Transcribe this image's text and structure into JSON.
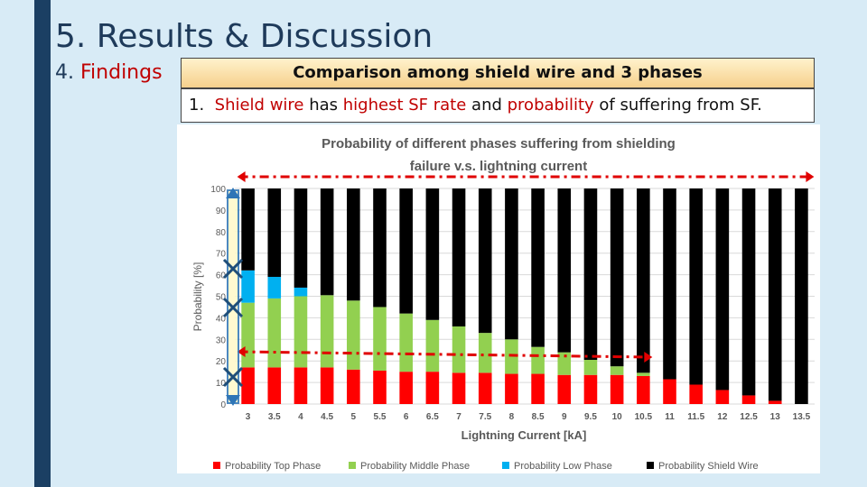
{
  "slide": {
    "title": "5. Results & Discussion",
    "section_number": "4.",
    "section_label": "Findings",
    "box_heading": "Comparison among shield wire and 3 phases",
    "finding_number": "1.",
    "finding_parts": [
      "Shield wire",
      " has ",
      "highest SF rate",
      " and ",
      "probability",
      " of suffering from SF."
    ],
    "accent_color": "#c00000",
    "sidebar_color": "#1b3f63"
  },
  "chart_data": {
    "type": "bar",
    "stacked": true,
    "title": "Probability of different phases suffering from shielding failure v.s. lightning current",
    "title_lines": [
      "Probability of different phases suffering from shielding",
      "failure v.s. lightning current"
    ],
    "xlabel": "Lightning Current [kA]",
    "ylabel": "Probability [%]",
    "ylim": [
      0,
      100
    ],
    "yticks": [
      0,
      10,
      20,
      30,
      40,
      50,
      60,
      70,
      80,
      90,
      100
    ],
    "grid": true,
    "legend_position": "bottom",
    "categories": [
      "3",
      "3.5",
      "4",
      "4.5",
      "5",
      "5.5",
      "6",
      "6.5",
      "7",
      "7.5",
      "8",
      "8.5",
      "9",
      "9.5",
      "10",
      "10.5",
      "11",
      "11.5",
      "12",
      "12.5",
      "13",
      "13.5"
    ],
    "series": [
      {
        "name": "Probability Top Phase",
        "color": "#ff0000",
        "values": [
          17,
          17,
          17,
          17,
          16,
          15.5,
          15,
          15,
          14.5,
          14.5,
          14,
          14,
          13.5,
          13.5,
          13.5,
          13,
          11.5,
          9,
          6.5,
          4,
          1.5,
          0
        ]
      },
      {
        "name": "Probability Middle Phase",
        "color": "#92d050",
        "values": [
          30,
          32,
          33,
          33.5,
          32,
          29.5,
          27,
          24,
          21.5,
          18.5,
          16,
          12.5,
          10.5,
          7,
          4,
          1.5,
          0,
          0,
          0,
          0,
          0,
          0
        ]
      },
      {
        "name": "Probability Low Phase",
        "color": "#00b0f0",
        "values": [
          15,
          10,
          4,
          0,
          0,
          0,
          0,
          0,
          0,
          0,
          0,
          0,
          0,
          0,
          0,
          0,
          0,
          0,
          0,
          0,
          0,
          0
        ]
      },
      {
        "name": "Probability Shield Wire",
        "color": "#000000",
        "values": [
          38,
          41,
          46,
          49.5,
          52,
          55,
          58,
          61,
          64,
          67,
          70,
          73.5,
          76,
          79.5,
          82.5,
          85.5,
          88.5,
          91,
          93.5,
          96,
          98.5,
          100
        ]
      }
    ],
    "annotation_color": "#e00000",
    "bracket_color": "#2e75b6"
  }
}
